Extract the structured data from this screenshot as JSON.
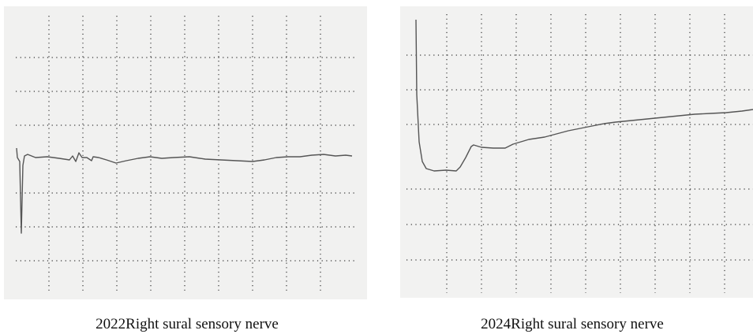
{
  "panels": [
    {
      "caption": "2022Right sural sensory nerve"
    },
    {
      "caption": "2024Right sural sensory nerve"
    }
  ]
}
